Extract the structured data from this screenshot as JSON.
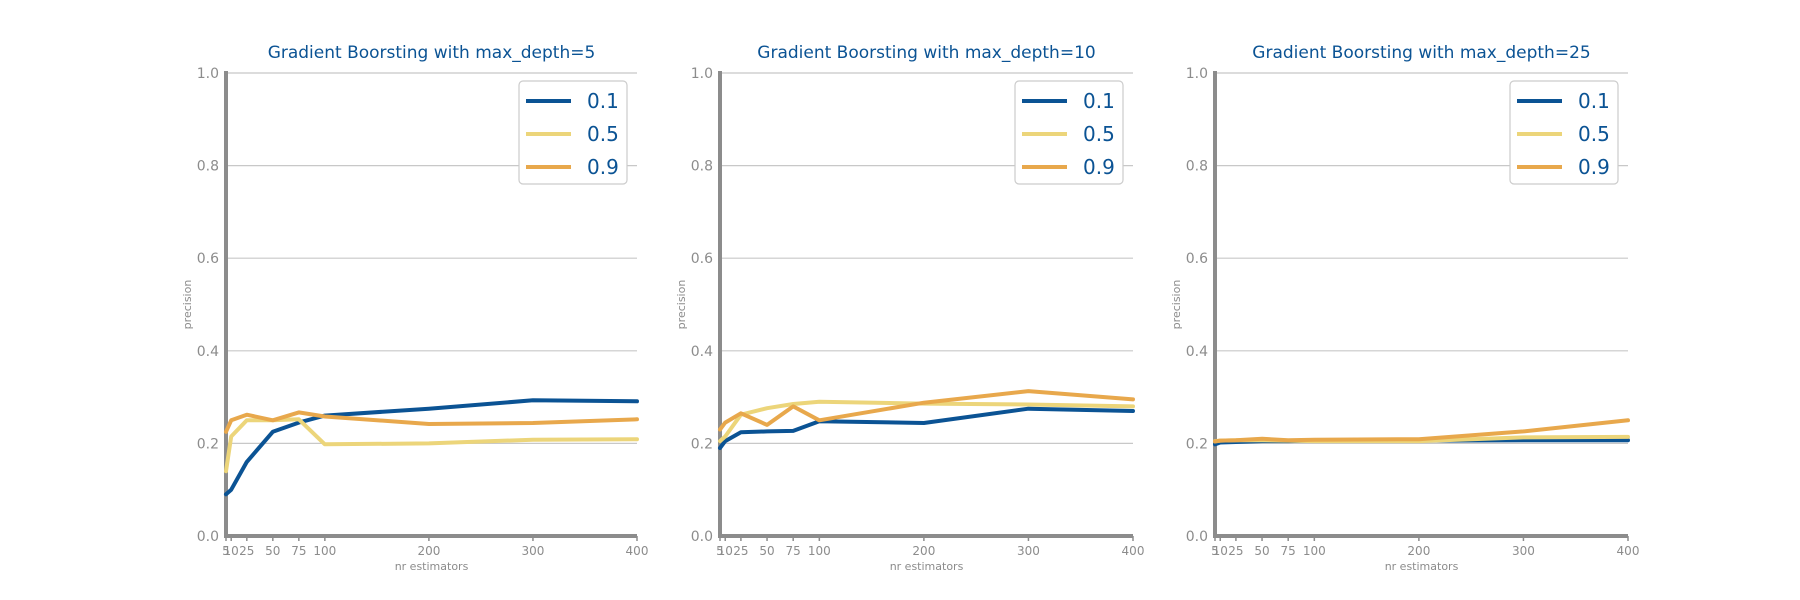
{
  "colors": {
    "series_0.1": "#0b5394",
    "series_0.5": "#ecd57a",
    "series_0.9": "#e8a84c",
    "text": "#0b5394",
    "axis": "#8c8c8c",
    "grid": "#c8c8c8"
  },
  "chart_data": [
    {
      "type": "line",
      "title": "Gradient Boorsting with max_depth=5",
      "xlabel": "nr estimators",
      "ylabel": "precision",
      "xlim": [
        5,
        400
      ],
      "ylim": [
        0.0,
        1.0
      ],
      "xticks": [
        5,
        10,
        25,
        50,
        75,
        100,
        200,
        300,
        400
      ],
      "xtick_labels": [
        "5",
        "10",
        "25",
        "50",
        "75",
        "100",
        "200",
        "300",
        "400"
      ],
      "yticks": [
        0.0,
        0.2,
        0.4,
        0.6,
        0.8,
        1.0
      ],
      "ytick_labels": [
        "0.0",
        "0.2",
        "0.4",
        "0.6",
        "0.8",
        "1.0"
      ],
      "grid": true,
      "legend_position": "top-right",
      "x": [
        5,
        10,
        25,
        50,
        75,
        100,
        200,
        300,
        400
      ],
      "series": [
        {
          "name": "0.1",
          "values": [
            0.09,
            0.1,
            0.16,
            0.225,
            0.245,
            0.26,
            0.275,
            0.293,
            0.291
          ]
        },
        {
          "name": "0.5",
          "values": [
            0.14,
            0.215,
            0.25,
            0.25,
            0.252,
            0.198,
            0.2,
            0.208,
            0.209
          ]
        },
        {
          "name": "0.9",
          "values": [
            0.225,
            0.25,
            0.262,
            0.25,
            0.267,
            0.258,
            0.242,
            0.244,
            0.252
          ]
        }
      ]
    },
    {
      "type": "line",
      "title": "Gradient Boorsting with max_depth=10",
      "xlabel": "nr estimators",
      "ylabel": "precision",
      "xlim": [
        5,
        400
      ],
      "ylim": [
        0.0,
        1.0
      ],
      "xticks": [
        5,
        10,
        25,
        50,
        75,
        100,
        200,
        300,
        400
      ],
      "xtick_labels": [
        "5",
        "10",
        "25",
        "50",
        "75",
        "100",
        "200",
        "300",
        "400"
      ],
      "yticks": [
        0.0,
        0.2,
        0.4,
        0.6,
        0.8,
        1.0
      ],
      "ytick_labels": [
        "0.0",
        "0.2",
        "0.4",
        "0.6",
        "0.8",
        "1.0"
      ],
      "grid": true,
      "legend_position": "top-right",
      "x": [
        5,
        10,
        25,
        50,
        75,
        100,
        200,
        300,
        400
      ],
      "series": [
        {
          "name": "0.1",
          "values": [
            0.19,
            0.205,
            0.224,
            0.226,
            0.227,
            0.248,
            0.244,
            0.275,
            0.27
          ]
        },
        {
          "name": "0.5",
          "values": [
            0.205,
            0.215,
            0.262,
            0.276,
            0.285,
            0.29,
            0.286,
            0.284,
            0.28
          ]
        },
        {
          "name": "0.9",
          "values": [
            0.23,
            0.245,
            0.265,
            0.24,
            0.28,
            0.25,
            0.288,
            0.313,
            0.295
          ]
        }
      ]
    },
    {
      "type": "line",
      "title": "Gradient Boorsting with max_depth=25",
      "xlabel": "nr estimators",
      "ylabel": "precision",
      "xlim": [
        5,
        400
      ],
      "ylim": [
        0.0,
        1.0
      ],
      "xticks": [
        5,
        10,
        25,
        50,
        75,
        100,
        200,
        300,
        400
      ],
      "xtick_labels": [
        "5",
        "10",
        "25",
        "50",
        "75",
        "100",
        "200",
        "300",
        "400"
      ],
      "yticks": [
        0.0,
        0.2,
        0.4,
        0.6,
        0.8,
        1.0
      ],
      "ytick_labels": [
        "0.0",
        "0.2",
        "0.4",
        "0.6",
        "0.8",
        "1.0"
      ],
      "grid": true,
      "legend_position": "top-right",
      "x": [
        5,
        10,
        25,
        50,
        75,
        100,
        200,
        300,
        400
      ],
      "series": [
        {
          "name": "0.1",
          "values": [
            0.198,
            0.202,
            0.203,
            0.205,
            0.205,
            0.206,
            0.206,
            0.207,
            0.207
          ]
        },
        {
          "name": "0.5",
          "values": [
            0.205,
            0.206,
            0.207,
            0.207,
            0.206,
            0.205,
            0.205,
            0.213,
            0.214
          ]
        },
        {
          "name": "0.9",
          "values": [
            0.204,
            0.206,
            0.207,
            0.21,
            0.207,
            0.208,
            0.209,
            0.226,
            0.25
          ]
        }
      ]
    }
  ]
}
